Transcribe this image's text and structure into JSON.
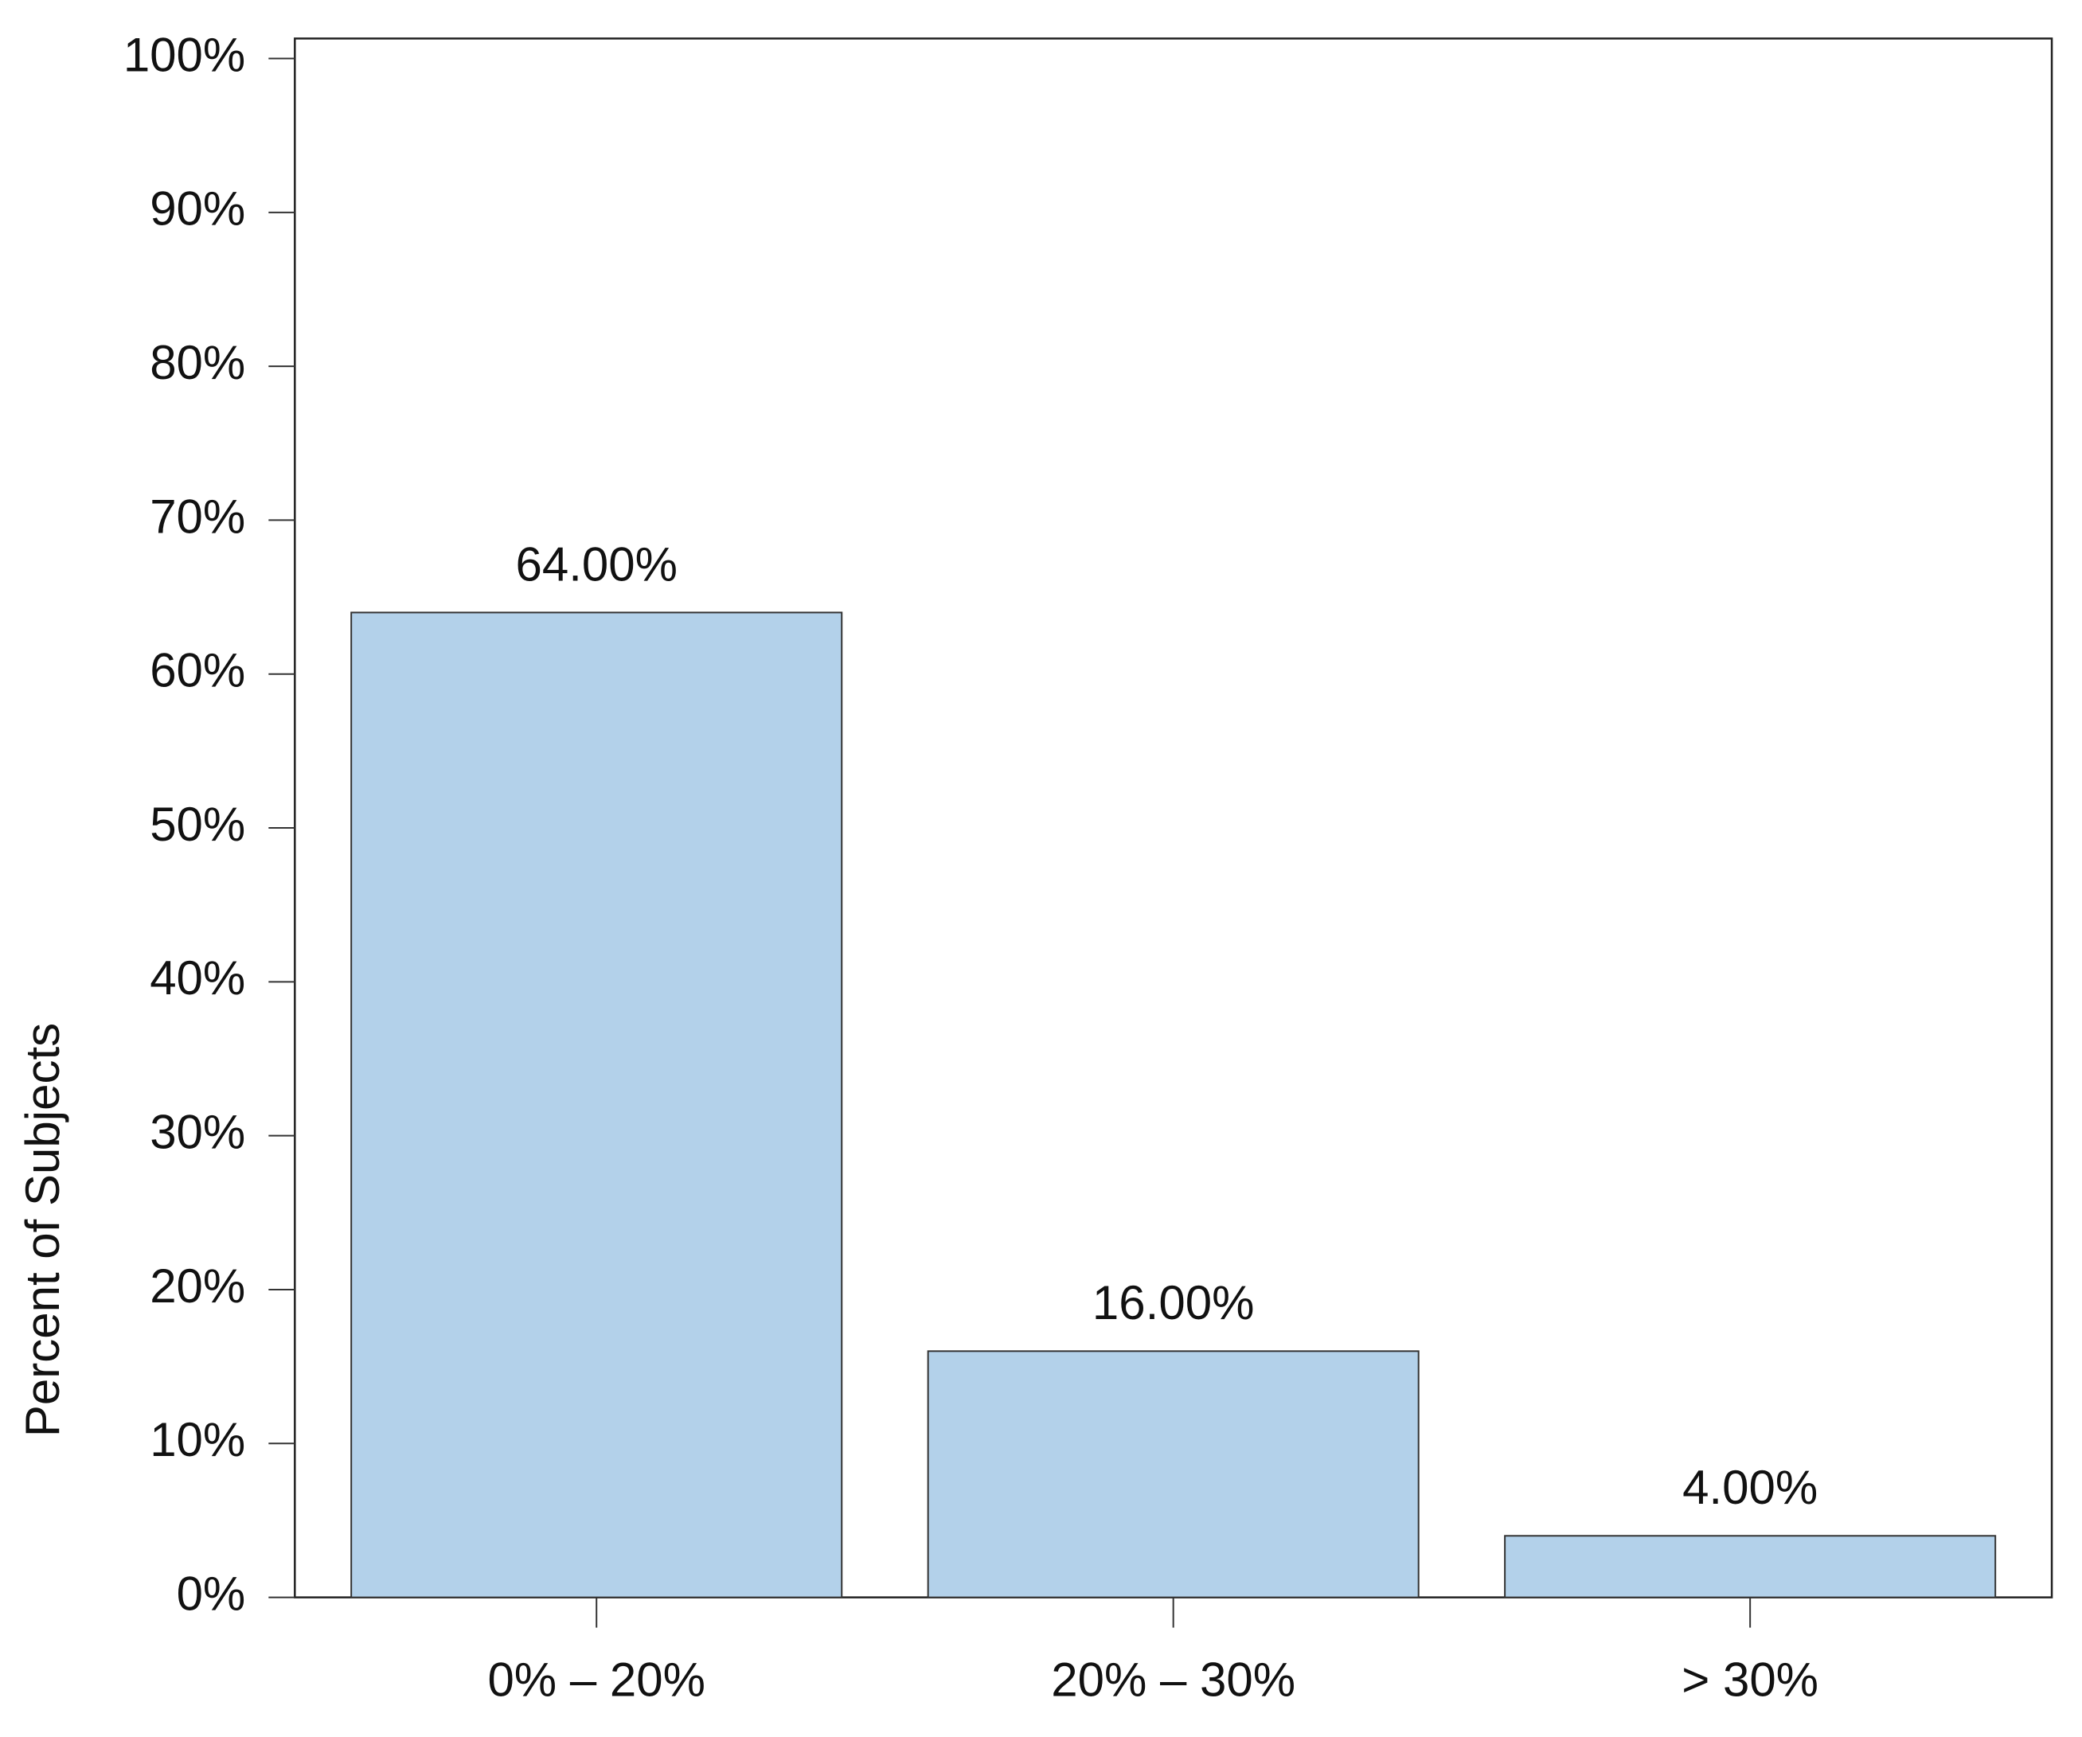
{
  "chart_data": {
    "type": "bar",
    "y_label": "Percent of Subjects",
    "categories": [
      "0% – 20%",
      "20% – 30%",
      "> 30%"
    ],
    "values": [
      64,
      16,
      4
    ],
    "value_labels": [
      "64.00%",
      "16.00%",
      "4.00%"
    ],
    "color": "#b3d1ea",
    "ylim": [
      0,
      101.3
    ],
    "yticks": [
      {
        "value": 0,
        "label": "0%"
      },
      {
        "value": 10,
        "label": "10%"
      },
      {
        "value": 20,
        "label": "20%"
      },
      {
        "value": 30,
        "label": "30%"
      },
      {
        "value": 40,
        "label": "40%"
      },
      {
        "value": 50,
        "label": "50%"
      },
      {
        "value": 60,
        "label": "60%"
      },
      {
        "value": 70,
        "label": "70%"
      },
      {
        "value": 80,
        "label": "80%"
      },
      {
        "value": 90,
        "label": "90%"
      },
      {
        "value": 100,
        "label": "100%"
      }
    ]
  }
}
